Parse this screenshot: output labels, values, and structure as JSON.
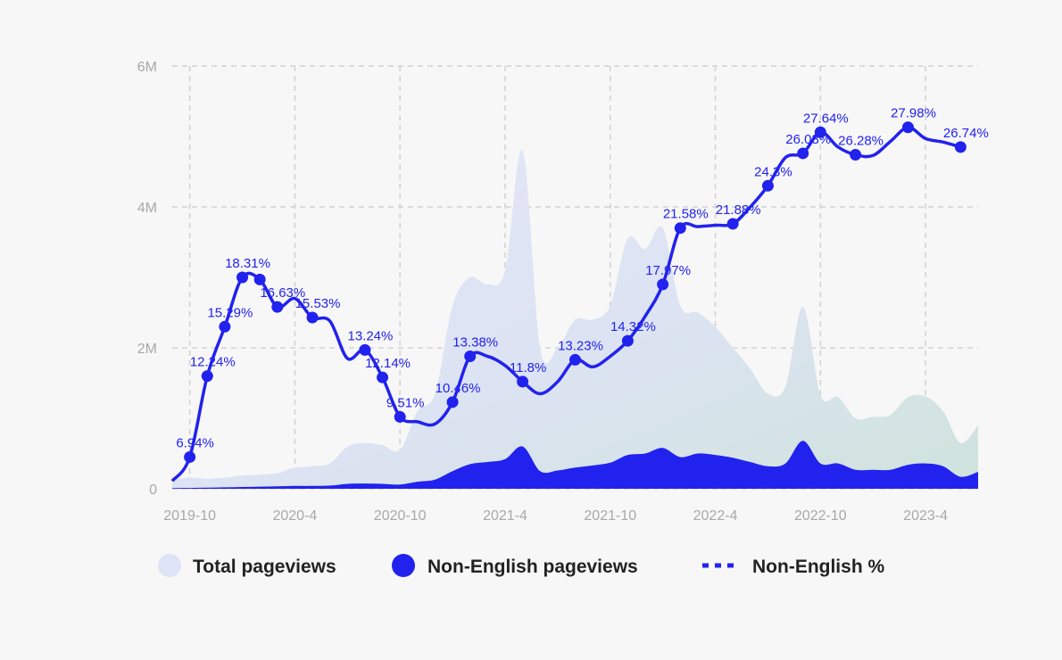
{
  "chart_data": {
    "type": "area",
    "title": "",
    "x_axis": {
      "type": "time",
      "start": "2019-09",
      "end": "2023-07",
      "tick_labels": [
        "2019-10",
        "2020-4",
        "2020-10",
        "2021-4",
        "2021-10",
        "2022-4",
        "2022-10",
        "2023-4"
      ]
    },
    "y_axis": {
      "ylim": [
        0,
        6000000
      ],
      "tick_values": [
        0,
        2000000,
        4000000,
        6000000
      ],
      "tick_labels": [
        "0",
        "2M",
        "4M",
        "6M"
      ]
    },
    "grid": "dashed",
    "legend_position": "bottom",
    "colors": {
      "total_area_top": "#dfe3f6",
      "total_area_bottom_right": "#cfe2df",
      "non_english_area": "#2222ee",
      "pct_line": "#2222ee",
      "grid": "#d2d2d2",
      "axis_text": "#a8a8a8"
    },
    "series": [
      {
        "name": "Total pageviews",
        "kind": "area",
        "points": [
          [
            "2019-09",
            120000
          ],
          [
            "2019-10",
            160000
          ],
          [
            "2019-11",
            140000
          ],
          [
            "2019-12",
            160000
          ],
          [
            "2020-01",
            190000
          ],
          [
            "2020-02",
            200000
          ],
          [
            "2020-03",
            220000
          ],
          [
            "2020-04",
            300000
          ],
          [
            "2020-05",
            320000
          ],
          [
            "2020-06",
            360000
          ],
          [
            "2020-07",
            600000
          ],
          [
            "2020-08",
            650000
          ],
          [
            "2020-09",
            620000
          ],
          [
            "2020-10",
            550000
          ],
          [
            "2020-11",
            1100000
          ],
          [
            "2020-12",
            1350000
          ],
          [
            "2021-01",
            2600000
          ],
          [
            "2021-02",
            3000000
          ],
          [
            "2021-03",
            2900000
          ],
          [
            "2021-04",
            3100000
          ],
          [
            "2021-05",
            4800000
          ],
          [
            "2021-06",
            2000000
          ],
          [
            "2021-07",
            2000000
          ],
          [
            "2021-08",
            2400000
          ],
          [
            "2021-09",
            2400000
          ],
          [
            "2021-10",
            2600000
          ],
          [
            "2021-11",
            3550000
          ],
          [
            "2021-12",
            3400000
          ],
          [
            "2022-01",
            3700000
          ],
          [
            "2022-02",
            2600000
          ],
          [
            "2022-03",
            2500000
          ],
          [
            "2022-04",
            2300000
          ],
          [
            "2022-05",
            2000000
          ],
          [
            "2022-06",
            1700000
          ],
          [
            "2022-07",
            1350000
          ],
          [
            "2022-08",
            1450000
          ],
          [
            "2022-09",
            2580000
          ],
          [
            "2022-10",
            1330000
          ],
          [
            "2022-11",
            1300000
          ],
          [
            "2022-12",
            1000000
          ],
          [
            "2023-01",
            1020000
          ],
          [
            "2023-02",
            1050000
          ],
          [
            "2023-03",
            1300000
          ],
          [
            "2023-04",
            1310000
          ],
          [
            "2023-05",
            1100000
          ],
          [
            "2023-06",
            650000
          ],
          [
            "2023-07",
            900000
          ]
        ]
      },
      {
        "name": "Non-English pageviews",
        "kind": "area",
        "points": [
          [
            "2019-09",
            10000
          ],
          [
            "2019-10",
            12000
          ],
          [
            "2019-11",
            15000
          ],
          [
            "2019-12",
            20000
          ],
          [
            "2020-01",
            25000
          ],
          [
            "2020-02",
            30000
          ],
          [
            "2020-03",
            35000
          ],
          [
            "2020-04",
            40000
          ],
          [
            "2020-05",
            40000
          ],
          [
            "2020-06",
            45000
          ],
          [
            "2020-07",
            70000
          ],
          [
            "2020-08",
            75000
          ],
          [
            "2020-09",
            70000
          ],
          [
            "2020-10",
            60000
          ],
          [
            "2020-11",
            100000
          ],
          [
            "2020-12",
            130000
          ],
          [
            "2021-01",
            250000
          ],
          [
            "2021-02",
            350000
          ],
          [
            "2021-03",
            380000
          ],
          [
            "2021-04",
            420000
          ],
          [
            "2021-05",
            600000
          ],
          [
            "2021-06",
            250000
          ],
          [
            "2021-07",
            260000
          ],
          [
            "2021-08",
            300000
          ],
          [
            "2021-09",
            330000
          ],
          [
            "2021-10",
            370000
          ],
          [
            "2021-11",
            480000
          ],
          [
            "2021-12",
            500000
          ],
          [
            "2022-01",
            580000
          ],
          [
            "2022-02",
            450000
          ],
          [
            "2022-03",
            500000
          ],
          [
            "2022-04",
            480000
          ],
          [
            "2022-05",
            440000
          ],
          [
            "2022-06",
            380000
          ],
          [
            "2022-07",
            320000
          ],
          [
            "2022-08",
            360000
          ],
          [
            "2022-09",
            680000
          ],
          [
            "2022-10",
            360000
          ],
          [
            "2022-11",
            360000
          ],
          [
            "2022-12",
            270000
          ],
          [
            "2023-01",
            270000
          ],
          [
            "2023-02",
            270000
          ],
          [
            "2023-03",
            340000
          ],
          [
            "2023-04",
            360000
          ],
          [
            "2023-05",
            320000
          ],
          [
            "2023-06",
            170000
          ],
          [
            "2023-07",
            240000
          ]
        ]
      },
      {
        "name": "Non-English %",
        "kind": "line",
        "smooth_points": [
          [
            "2019-09",
            0.11
          ],
          [
            "2019-10",
            0.45
          ],
          [
            "2019-11",
            1.6
          ],
          [
            "2019-12",
            2.3
          ],
          [
            "2020-01",
            3.0
          ],
          [
            "2020-02",
            2.97
          ],
          [
            "2020-03",
            2.58
          ],
          [
            "2020-04",
            2.7
          ],
          [
            "2020-05",
            2.43
          ],
          [
            "2020-06",
            2.38
          ],
          [
            "2020-07",
            1.85
          ],
          [
            "2020-08",
            1.97
          ],
          [
            "2020-09",
            1.58
          ],
          [
            "2020-10",
            1.02
          ],
          [
            "2020-11",
            0.95
          ],
          [
            "2020-12",
            0.92
          ],
          [
            "2021-01",
            1.23
          ],
          [
            "2021-02",
            1.88
          ],
          [
            "2021-03",
            1.88
          ],
          [
            "2021-04",
            1.75
          ],
          [
            "2021-05",
            1.52
          ],
          [
            "2021-06",
            1.35
          ],
          [
            "2021-07",
            1.52
          ],
          [
            "2021-08",
            1.83
          ],
          [
            "2021-09",
            1.73
          ],
          [
            "2021-10",
            1.88
          ],
          [
            "2021-11",
            2.1
          ],
          [
            "2021-12",
            2.45
          ],
          [
            "2022-01",
            2.9
          ],
          [
            "2022-02",
            3.7
          ],
          [
            "2022-03",
            3.72
          ],
          [
            "2022-04",
            3.74
          ],
          [
            "2022-05",
            3.76
          ],
          [
            "2022-06",
            4.0
          ],
          [
            "2022-07",
            4.3
          ],
          [
            "2022-08",
            4.7
          ],
          [
            "2022-09",
            4.76
          ],
          [
            "2022-10",
            5.06
          ],
          [
            "2022-11",
            4.85
          ],
          [
            "2022-12",
            4.74
          ],
          [
            "2023-01",
            4.73
          ],
          [
            "2023-02",
            4.93
          ],
          [
            "2023-03",
            5.13
          ],
          [
            "2023-04",
            4.97
          ],
          [
            "2023-05",
            4.92
          ],
          [
            "2023-06",
            4.85
          ]
        ],
        "labeled_points": [
          {
            "x": "2019-10",
            "y": 0.45,
            "label": "6.94%"
          },
          {
            "x": "2019-11",
            "y": 1.6,
            "label": "12.24%"
          },
          {
            "x": "2019-12",
            "y": 2.3,
            "label": "15.29%"
          },
          {
            "x": "2020-01",
            "y": 3.0,
            "label": "18.31%"
          },
          {
            "x": "2020-02",
            "y": 2.97,
            "label": ""
          },
          {
            "x": "2020-03",
            "y": 2.58,
            "label": "16.63%"
          },
          {
            "x": "2020-05",
            "y": 2.43,
            "label": "15.53%"
          },
          {
            "x": "2020-08",
            "y": 1.97,
            "label": "13.24%"
          },
          {
            "x": "2020-09",
            "y": 1.58,
            "label": "12.14%"
          },
          {
            "x": "2020-10",
            "y": 1.02,
            "label": "9.51%"
          },
          {
            "x": "2021-01",
            "y": 1.23,
            "label": "10.46%"
          },
          {
            "x": "2021-02",
            "y": 1.88,
            "label": "13.38%"
          },
          {
            "x": "2021-05",
            "y": 1.52,
            "label": "11.8%"
          },
          {
            "x": "2021-08",
            "y": 1.83,
            "label": "13.23%"
          },
          {
            "x": "2021-11",
            "y": 2.1,
            "label": "14.32%"
          },
          {
            "x": "2022-01",
            "y": 2.9,
            "label": "17.97%"
          },
          {
            "x": "2022-02",
            "y": 3.7,
            "label": "21.58%"
          },
          {
            "x": "2022-05",
            "y": 3.76,
            "label": "21.88%"
          },
          {
            "x": "2022-07",
            "y": 4.3,
            "label": "24.3%"
          },
          {
            "x": "2022-09",
            "y": 4.76,
            "label": "26.08%"
          },
          {
            "x": "2022-10",
            "y": 5.06,
            "label": "27.64%"
          },
          {
            "x": "2022-12",
            "y": 4.74,
            "label": "26.28%"
          },
          {
            "x": "2023-03",
            "y": 5.13,
            "label": "27.98%"
          },
          {
            "x": "2023-06",
            "y": 4.85,
            "label": "26.74%"
          }
        ]
      }
    ],
    "legend": [
      {
        "label": "Total pageviews",
        "marker": "circle",
        "color": "#dfe3f6"
      },
      {
        "label": "Non-English pageviews",
        "marker": "circle",
        "color": "#2222ee"
      },
      {
        "label": "Non-English %",
        "marker": "dashed-line",
        "color": "#2222ee"
      }
    ]
  }
}
